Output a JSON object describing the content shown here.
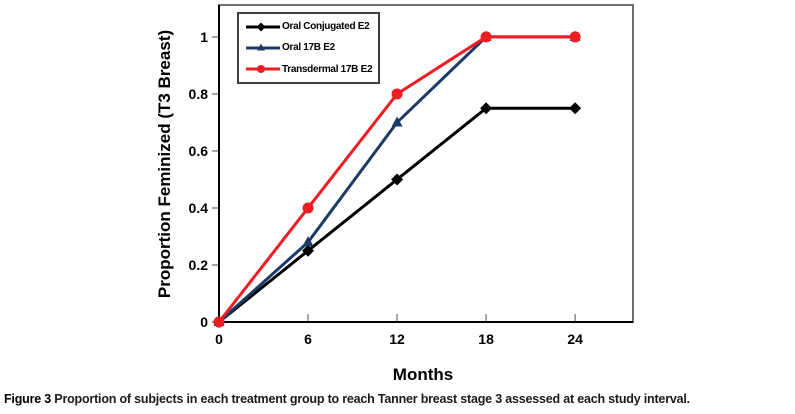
{
  "figure": {
    "caption_label": "Figure 3",
    "caption_text": " Proportion of subjects in each treatment group to reach Tanner breast stage 3 assessed at each study interval."
  },
  "chart_data": {
    "type": "line",
    "title": "",
    "xlabel": "Months",
    "ylabel": "Proportion Feminized (T3 Breast)",
    "x": [
      0,
      6,
      12,
      18,
      24
    ],
    "x_ticks": [
      0,
      6,
      12,
      18,
      24
    ],
    "x_tick_labels": [
      "0",
      "6",
      "12",
      "18",
      "24"
    ],
    "y_ticks": [
      0,
      0.2,
      0.4,
      0.6,
      0.8,
      1
    ],
    "y_tick_labels": [
      "0",
      "0.2",
      "0.4",
      "0.6",
      "0.8",
      "1"
    ],
    "xlim": [
      0,
      27.9
    ],
    "ylim": [
      0,
      1.112
    ],
    "grid": false,
    "legend_position": "top-left-inside",
    "background_color": "#ffffff",
    "axis_color": "#000000",
    "plot_border_color": "#6f6f6f",
    "series": [
      {
        "name": "Oral Conjugated E2",
        "color": "#000000",
        "marker": "diamond",
        "values": [
          0,
          0.25,
          0.5,
          0.75,
          0.75
        ]
      },
      {
        "name": "Oral 17B E2",
        "color": "#1b3a66",
        "marker": "triangle",
        "values": [
          0,
          0.28,
          0.7,
          1,
          1
        ]
      },
      {
        "name": "Transdermal 17B E2",
        "color": "#ee1c23",
        "marker": "circle",
        "values": [
          0,
          0.4,
          0.8,
          1,
          1
        ]
      }
    ]
  }
}
